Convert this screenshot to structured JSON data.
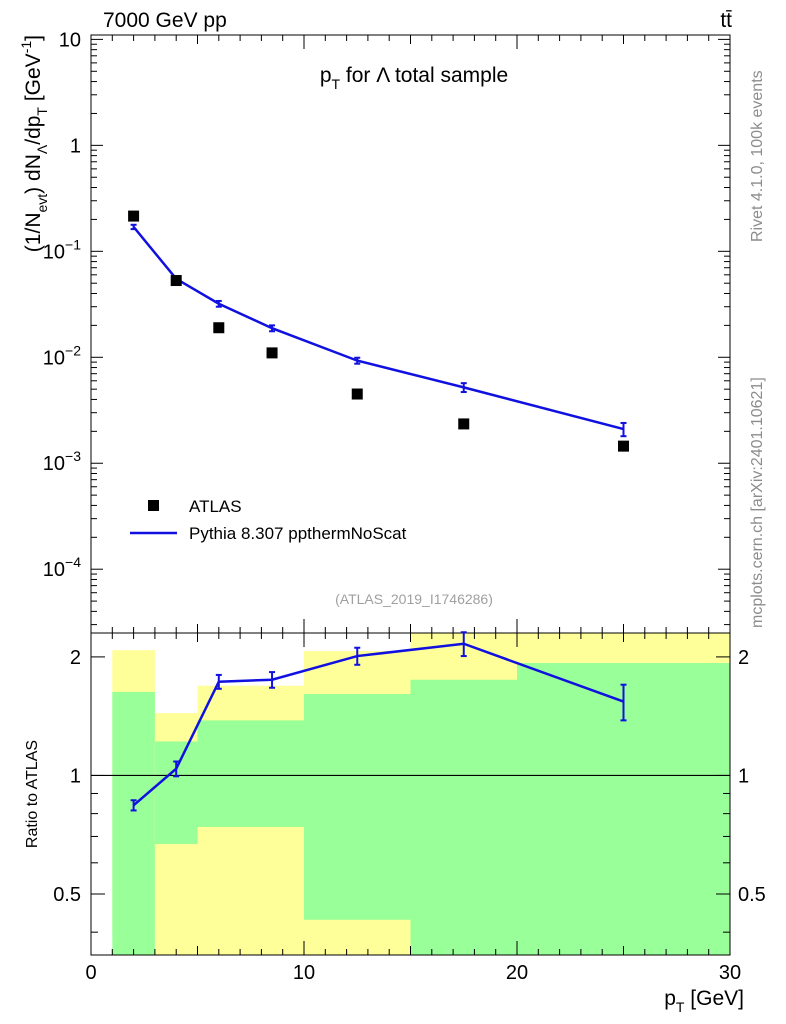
{
  "header": {
    "energy_label": "7000 GeV pp",
    "process_label": "tt̄",
    "side_label_top": "Rivet 4.1.0,  100k events",
    "side_label_bottom": "mcplots.cern.ch [arXiv:2401.10621]",
    "analysis_label": "(ATLAS_2019_I1746286)"
  },
  "chart_data": [
    {
      "type": "scatter",
      "panel": "main",
      "title": "p_T for Λ total sample",
      "title_parts": {
        "p": "p",
        "sub": "T",
        "rest": " for Λ total sample"
      },
      "ylabel": "(1/N_evt) dN_Λ/dp_T [GeV^-1]",
      "xlabel": "p_T [GeV]",
      "yscale": "log",
      "ylim": [
        2.5e-05,
        11
      ],
      "xlim": [
        0,
        30
      ],
      "y_ticks": [
        {
          "value": 10,
          "base": "10",
          "exp": ""
        },
        {
          "value": 1,
          "base": "1",
          "exp": ""
        },
        {
          "value": 0.1,
          "base": "10",
          "exp": "−1"
        },
        {
          "value": 0.01,
          "base": "10",
          "exp": "−2"
        },
        {
          "value": 0.001,
          "base": "10",
          "exp": "−3"
        },
        {
          "value": 0.0001,
          "base": "10",
          "exp": "−4"
        }
      ],
      "legend": {
        "position": "bottom-left",
        "entries": [
          "ATLAS",
          "Pythia 8.307 ppthermNoScat"
        ]
      },
      "series": [
        {
          "name": "ATLAS",
          "style": "markers",
          "color": "#000000",
          "x": [
            2,
            4,
            6,
            8.5,
            12.5,
            17.5,
            25
          ],
          "y": [
            0.215,
            0.053,
            0.019,
            0.011,
            0.0045,
            0.00235,
            0.00145
          ]
        },
        {
          "name": "Pythia 8.307 ppthermNoScat",
          "style": "line",
          "color": "#1010e0",
          "x": [
            2,
            4,
            6,
            8.5,
            12.5,
            17.5,
            25
          ],
          "y": [
            0.17,
            0.055,
            0.032,
            0.0188,
            0.0093,
            0.0052,
            0.0021
          ],
          "err": [
            0.008,
            0.003,
            0.002,
            0.0012,
            0.0006,
            0.0005,
            0.0003
          ]
        }
      ]
    },
    {
      "type": "line",
      "panel": "ratio",
      "ylabel": "Ratio to ATLAS",
      "xlabel": "p_T [GeV]",
      "yscale": "log",
      "ylim": [
        0.35,
        2.3
      ],
      "xlim": [
        0,
        30
      ],
      "y_ticks": [
        0.5,
        1,
        2
      ],
      "x_ticks": [
        0,
        10,
        20,
        30
      ],
      "reference_line": 1,
      "bands": [
        {
          "x0": 1,
          "x1": 3,
          "yellow": [
            0.4,
            2.08
          ],
          "green": [
            0.35,
            1.63
          ]
        },
        {
          "x0": 3,
          "x1": 5,
          "yellow": [
            0.35,
            1.44
          ],
          "green": [
            0.67,
            1.22
          ]
        },
        {
          "x0": 5,
          "x1": 10,
          "yellow": [
            0.35,
            1.69
          ],
          "green": [
            0.74,
            1.38
          ]
        },
        {
          "x0": 10,
          "x1": 15,
          "yellow": [
            0.35,
            2.07
          ],
          "green": [
            0.43,
            1.61
          ]
        },
        {
          "x0": 15,
          "x1": 20,
          "yellow": [
            0.35,
            2.3
          ],
          "green": [
            0.35,
            1.75
          ]
        },
        {
          "x0": 20,
          "x1": 30,
          "yellow": [
            0.35,
            2.3
          ],
          "green": [
            0.35,
            1.93
          ]
        }
      ],
      "series": [
        {
          "name": "Pythia 8.307 ppthermNoScat / ATLAS",
          "color": "#1010e0",
          "x": [
            2,
            4,
            6,
            8.5,
            12.5,
            17.5,
            25
          ],
          "y": [
            0.84,
            1.04,
            1.73,
            1.75,
            2.01,
            2.16,
            1.54
          ],
          "err": [
            0.025,
            0.045,
            0.07,
            0.08,
            0.1,
            0.15,
            0.16
          ]
        }
      ]
    }
  ],
  "colors": {
    "yellow_band": "#ffff99",
    "green_band": "#99ff99",
    "mc_line": "#1010e0",
    "data_marker": "#000000"
  }
}
